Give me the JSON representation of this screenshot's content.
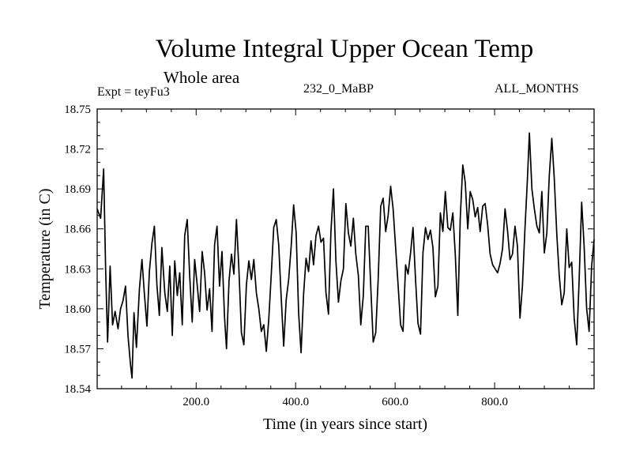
{
  "chart_data": {
    "type": "line",
    "title": "Volume Integral Upper Ocean Temp",
    "subtitle": "Whole area",
    "experiment": "Expt = teyFu3",
    "run_label": "232_0_MaBP",
    "months_label": "ALL_MONTHS",
    "xlabel": "Time (in years since start)",
    "ylabel": "Temperature (in C)",
    "xlim": [
      1,
      1000
    ],
    "ylim": [
      18.54,
      18.75
    ],
    "xticks": [
      200,
      400,
      600,
      800
    ],
    "xtick_labels": [
      "200.0",
      "400.0",
      "600.0",
      "800.0"
    ],
    "yticks": [
      18.54,
      18.57,
      18.6,
      18.63,
      18.66,
      18.69,
      18.72,
      18.75
    ],
    "ytick_labels": [
      "18.54",
      "18.57",
      "18.60",
      "18.63",
      "18.66",
      "18.69",
      "18.72",
      "18.75"
    ],
    "series": [
      {
        "name": "teyFu3",
        "points": [
          [
            1,
            18.675
          ],
          [
            8,
            18.668
          ],
          [
            14,
            18.705
          ],
          [
            18,
            18.63
          ],
          [
            22,
            18.575
          ],
          [
            27,
            18.632
          ],
          [
            32,
            18.588
          ],
          [
            37,
            18.598
          ],
          [
            43,
            18.585
          ],
          [
            48,
            18.6
          ],
          [
            53,
            18.606
          ],
          [
            58,
            18.617
          ],
          [
            63,
            18.58
          ],
          [
            68,
            18.558
          ],
          [
            71,
            18.548
          ],
          [
            75,
            18.597
          ],
          [
            80,
            18.571
          ],
          [
            86,
            18.615
          ],
          [
            91,
            18.637
          ],
          [
            96,
            18.611
          ],
          [
            101,
            18.587
          ],
          [
            106,
            18.628
          ],
          [
            111,
            18.649
          ],
          [
            116,
            18.662
          ],
          [
            121,
            18.618
          ],
          [
            126,
            18.595
          ],
          [
            131,
            18.646
          ],
          [
            137,
            18.612
          ],
          [
            142,
            18.598
          ],
          [
            147,
            18.632
          ],
          [
            152,
            18.58
          ],
          [
            157,
            18.636
          ],
          [
            162,
            18.61
          ],
          [
            167,
            18.627
          ],
          [
            172,
            18.588
          ],
          [
            177,
            18.655
          ],
          [
            182,
            18.667
          ],
          [
            187,
            18.625
          ],
          [
            192,
            18.59
          ],
          [
            197,
            18.637
          ],
          [
            202,
            18.618
          ],
          [
            207,
            18.598
          ],
          [
            212,
            18.643
          ],
          [
            217,
            18.627
          ],
          [
            222,
            18.599
          ],
          [
            227,
            18.615
          ],
          [
            232,
            18.583
          ],
          [
            237,
            18.648
          ],
          [
            242,
            18.662
          ],
          [
            247,
            18.617
          ],
          [
            252,
            18.643
          ],
          [
            257,
            18.594
          ],
          [
            261,
            18.57
          ],
          [
            266,
            18.621
          ],
          [
            271,
            18.641
          ],
          [
            276,
            18.626
          ],
          [
            281,
            18.667
          ],
          [
            286,
            18.63
          ],
          [
            291,
            18.582
          ],
          [
            296,
            18.573
          ],
          [
            301,
            18.618
          ],
          [
            306,
            18.636
          ],
          [
            311,
            18.622
          ],
          [
            316,
            18.637
          ],
          [
            321,
            18.612
          ],
          [
            326,
            18.6
          ],
          [
            331,
            18.583
          ],
          [
            336,
            18.588
          ],
          [
            341,
            18.568
          ],
          [
            346,
            18.592
          ],
          [
            351,
            18.626
          ],
          [
            356,
            18.661
          ],
          [
            361,
            18.667
          ],
          [
            366,
            18.648
          ],
          [
            371,
            18.608
          ],
          [
            376,
            18.572
          ],
          [
            381,
            18.607
          ],
          [
            386,
            18.622
          ],
          [
            391,
            18.647
          ],
          [
            396,
            18.678
          ],
          [
            401,
            18.657
          ],
          [
            406,
            18.597
          ],
          [
            411,
            18.567
          ],
          [
            416,
            18.611
          ],
          [
            421,
            18.638
          ],
          [
            426,
            18.628
          ],
          [
            431,
            18.651
          ],
          [
            436,
            18.633
          ],
          [
            441,
            18.655
          ],
          [
            446,
            18.662
          ],
          [
            451,
            18.65
          ],
          [
            456,
            18.653
          ],
          [
            461,
            18.612
          ],
          [
            466,
            18.596
          ],
          [
            471,
            18.658
          ],
          [
            476,
            18.69
          ],
          [
            481,
            18.636
          ],
          [
            486,
            18.605
          ],
          [
            491,
            18.621
          ],
          [
            496,
            18.63
          ],
          [
            501,
            18.679
          ],
          [
            506,
            18.657
          ],
          [
            511,
            18.647
          ],
          [
            516,
            18.668
          ],
          [
            521,
            18.641
          ],
          [
            526,
            18.625
          ],
          [
            531,
            18.588
          ],
          [
            536,
            18.61
          ],
          [
            541,
            18.662
          ],
          [
            546,
            18.662
          ],
          [
            551,
            18.617
          ],
          [
            556,
            18.575
          ],
          [
            561,
            18.582
          ],
          [
            566,
            18.622
          ],
          [
            571,
            18.677
          ],
          [
            576,
            18.683
          ],
          [
            581,
            18.658
          ],
          [
            586,
            18.67
          ],
          [
            591,
            18.692
          ],
          [
            596,
            18.675
          ],
          [
            601,
            18.646
          ],
          [
            606,
            18.618
          ],
          [
            611,
            18.588
          ],
          [
            616,
            18.583
          ],
          [
            621,
            18.633
          ],
          [
            626,
            18.626
          ],
          [
            631,
            18.642
          ],
          [
            636,
            18.661
          ],
          [
            641,
            18.622
          ],
          [
            646,
            18.589
          ],
          [
            651,
            18.581
          ],
          [
            656,
            18.642
          ],
          [
            661,
            18.661
          ],
          [
            666,
            18.652
          ],
          [
            671,
            18.659
          ],
          [
            676,
            18.646
          ],
          [
            681,
            18.609
          ],
          [
            686,
            18.617
          ],
          [
            691,
            18.672
          ],
          [
            696,
            18.658
          ],
          [
            701,
            18.688
          ],
          [
            706,
            18.661
          ],
          [
            711,
            18.659
          ],
          [
            716,
            18.672
          ],
          [
            721,
            18.641
          ],
          [
            726,
            18.595
          ],
          [
            731,
            18.668
          ],
          [
            736,
            18.708
          ],
          [
            741,
            18.695
          ],
          [
            746,
            18.66
          ],
          [
            751,
            18.688
          ],
          [
            756,
            18.682
          ],
          [
            761,
            18.669
          ],
          [
            766,
            18.676
          ],
          [
            771,
            18.658
          ],
          [
            776,
            18.677
          ],
          [
            781,
            18.679
          ],
          [
            786,
            18.663
          ],
          [
            791,
            18.641
          ],
          [
            796,
            18.633
          ],
          [
            801,
            18.63
          ],
          [
            806,
            18.627
          ],
          [
            811,
            18.634
          ],
          [
            816,
            18.645
          ],
          [
            821,
            18.675
          ],
          [
            826,
            18.659
          ],
          [
            831,
            18.637
          ],
          [
            836,
            18.641
          ],
          [
            841,
            18.662
          ],
          [
            846,
            18.647
          ],
          [
            851,
            18.593
          ],
          [
            856,
            18.617
          ],
          [
            861,
            18.66
          ],
          [
            866,
            18.697
          ],
          [
            870,
            18.732
          ],
          [
            875,
            18.69
          ],
          [
            880,
            18.675
          ],
          [
            885,
            18.662
          ],
          [
            890,
            18.657
          ],
          [
            895,
            18.688
          ],
          [
            900,
            18.642
          ],
          [
            905,
            18.657
          ],
          [
            910,
            18.7
          ],
          [
            915,
            18.728
          ],
          [
            920,
            18.698
          ],
          [
            925,
            18.656
          ],
          [
            930,
            18.625
          ],
          [
            935,
            18.603
          ],
          [
            940,
            18.612
          ],
          [
            945,
            18.66
          ],
          [
            950,
            18.631
          ],
          [
            955,
            18.635
          ],
          [
            960,
            18.593
          ],
          [
            965,
            18.573
          ],
          [
            970,
            18.622
          ],
          [
            975,
            18.68
          ],
          [
            980,
            18.647
          ],
          [
            985,
            18.6
          ],
          [
            990,
            18.583
          ],
          [
            995,
            18.632
          ],
          [
            1000,
            18.652
          ]
        ]
      }
    ]
  }
}
